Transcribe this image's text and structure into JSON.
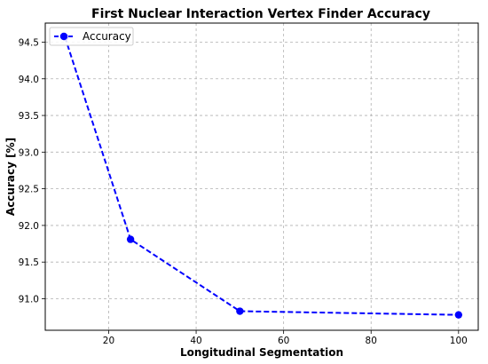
{
  "chart_data": {
    "type": "line",
    "title": "First Nuclear Interaction Vertex Finder Accuracy",
    "xlabel": "Longitudinal Segmentation",
    "ylabel": "Accuracy [%]",
    "xlim": [
      5.5,
      104.5
    ],
    "ylim": [
      90.57,
      94.76
    ],
    "xticks": [
      20,
      40,
      60,
      80,
      100
    ],
    "yticks": [
      91.0,
      91.5,
      92.0,
      92.5,
      93.0,
      93.5,
      94.0,
      94.5
    ],
    "grid": true,
    "legend_position": "top-left",
    "series": [
      {
        "name": "Accuracy",
        "color": "#0000ff",
        "line_style": "dashed",
        "marker": "circle",
        "x": [
          10,
          25,
          50,
          100
        ],
        "y": [
          94.57,
          91.81,
          90.83,
          90.78
        ]
      }
    ]
  }
}
